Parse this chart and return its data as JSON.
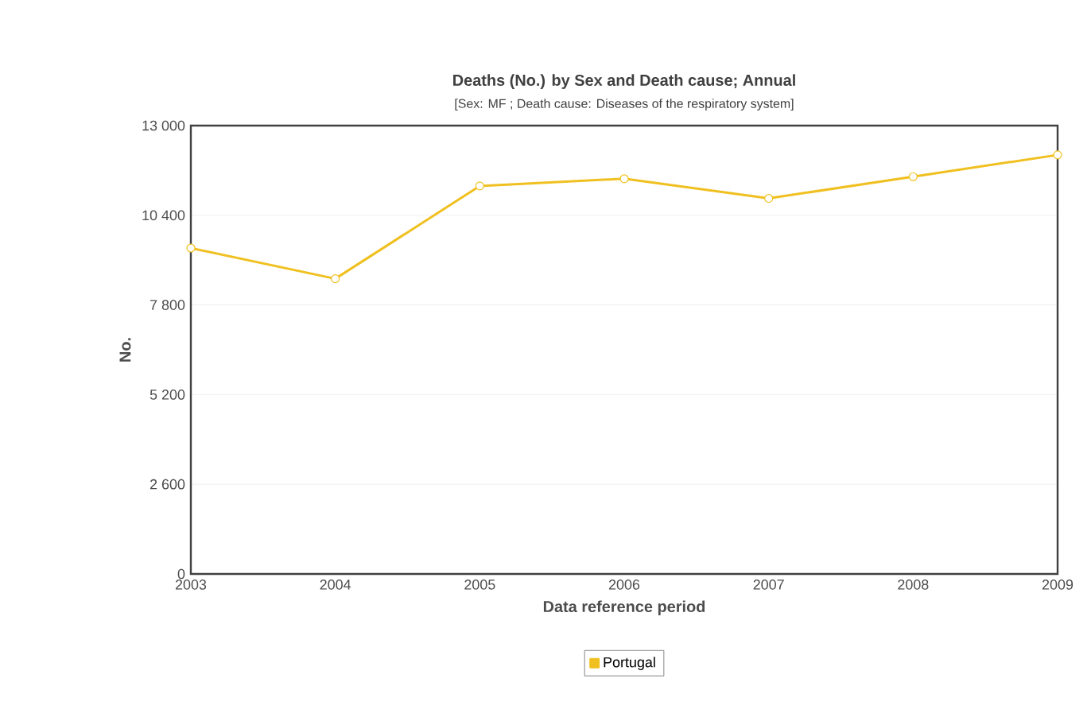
{
  "chart_data": {
    "type": "line",
    "title": "Deaths (No.) by Sex and Death cause; Annual",
    "subtitle": "[Sex: MF ; Death cause: Diseases of the respiratory system]",
    "xlabel": "Data reference period",
    "ylabel": "No.",
    "x": [
      2003,
      2004,
      2005,
      2006,
      2007,
      2008,
      2009
    ],
    "series": [
      {
        "name": "Portugal",
        "color": "#f0c020",
        "values": [
          9450,
          8560,
          11250,
          11460,
          10890,
          11520,
          12150
        ]
      }
    ],
    "xlim": [
      2003,
      2009
    ],
    "xticks": [
      2003,
      2004,
      2005,
      2006,
      2007,
      2008,
      2009
    ],
    "ylim": [
      0,
      13000
    ],
    "yticks": [
      0,
      {
        "value": 2600,
        "label": "2 600"
      },
      {
        "value": 5200,
        "label": "5 200"
      },
      {
        "value": 7800,
        "label": "7 800"
      },
      {
        "value": 10400,
        "label": "10 400"
      },
      {
        "value": 13000,
        "label": "13 000"
      }
    ],
    "grid": "y",
    "legend": "bottom",
    "marker": "circle",
    "line_style": "solid"
  }
}
